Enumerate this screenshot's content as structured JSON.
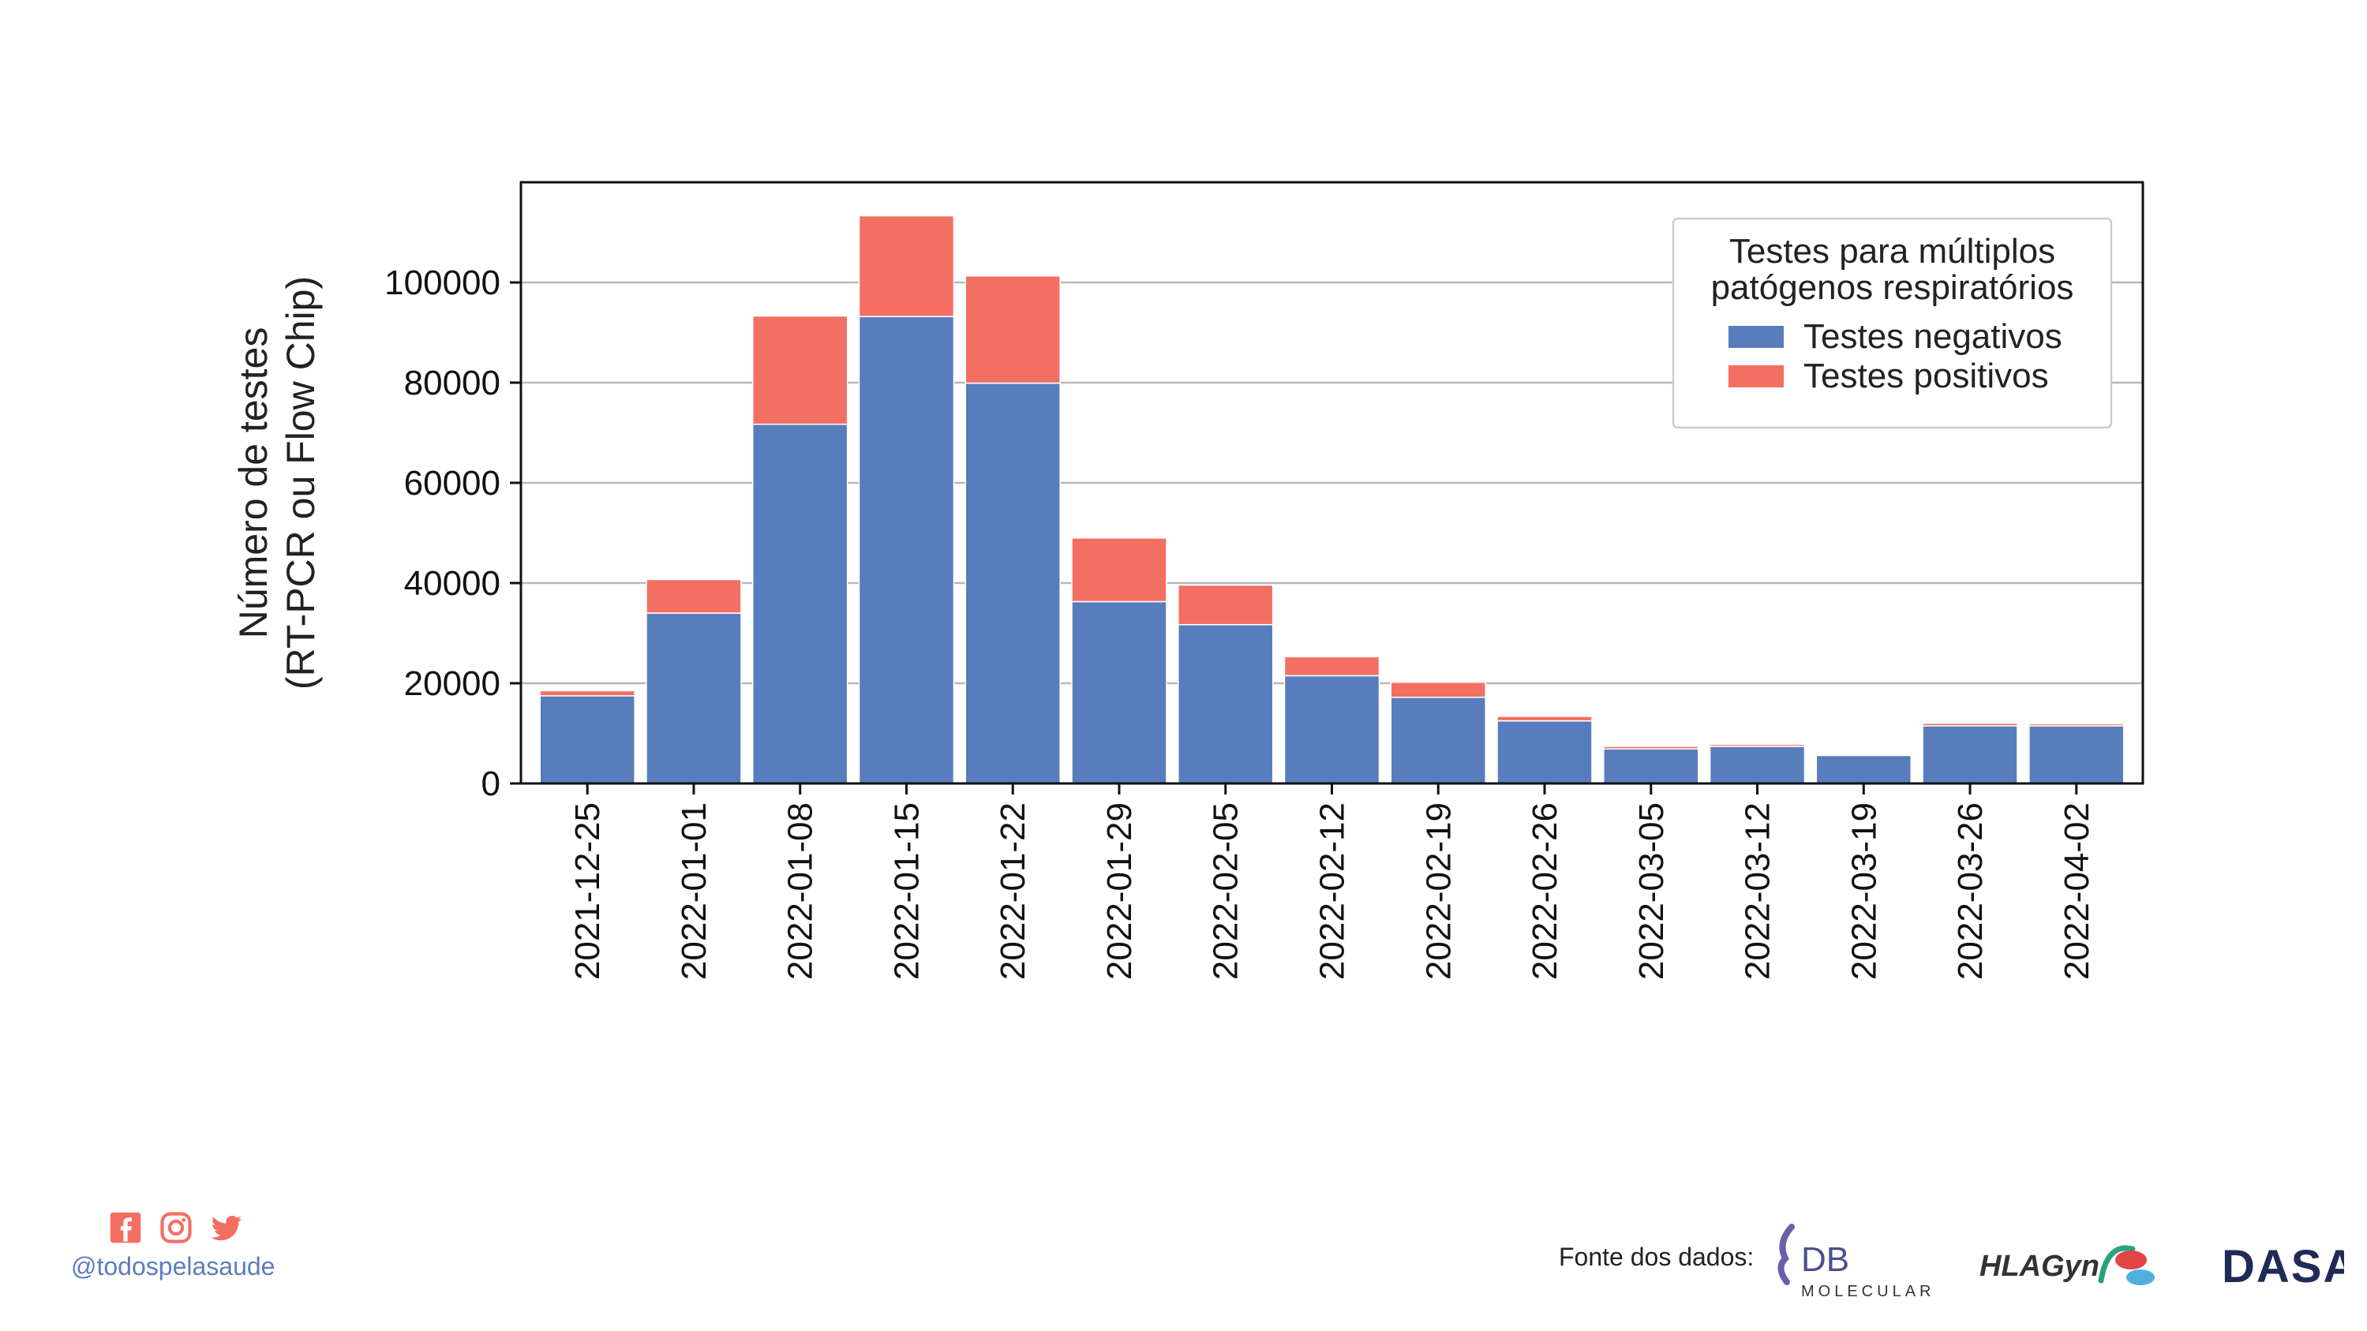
{
  "chart_data": {
    "type": "bar",
    "stacked": true,
    "title": "",
    "xlabel": "",
    "ylabel": [
      "Número de testes",
      "(RT-PCR ou Flow Chip)"
    ],
    "ylim": [
      0,
      120000
    ],
    "yticks": [
      0,
      20000,
      40000,
      60000,
      80000,
      100000
    ],
    "grid": "horizontal",
    "legend_placement": "top-right",
    "legend_title": [
      "Testes para múltiplos",
      "patógenos respiratórios"
    ],
    "categories": [
      "2021-12-25",
      "2022-01-01",
      "2022-01-08",
      "2022-01-15",
      "2022-01-22",
      "2022-01-29",
      "2022-02-05",
      "2022-02-12",
      "2022-02-19",
      "2022-02-26",
      "2022-03-05",
      "2022-03-12",
      "2022-03-19",
      "2022-03-26",
      "2022-04-02"
    ],
    "series": [
      {
        "name": "Testes negativos",
        "color": "#587dbd",
        "values": [
          17500,
          34000,
          71700,
          93200,
          79900,
          36300,
          31700,
          21500,
          17200,
          12500,
          6900,
          7400,
          5600,
          11500,
          11500
        ]
      },
      {
        "name": "Testes positivos",
        "color": "#f36f62",
        "values": [
          1000,
          6700,
          21600,
          20100,
          21400,
          12700,
          7900,
          3800,
          3000,
          900,
          500,
          400,
          100,
          500,
          400
        ]
      }
    ]
  },
  "footer": {
    "social_icons": [
      "facebook-icon",
      "instagram-icon",
      "twitter-icon"
    ],
    "social_color": "#f36f62",
    "handle": "@todospelasaude",
    "source_label": "Fonte dos dados:",
    "logos": {
      "db": "DB",
      "db_sub": "MOLECULAR",
      "hlagyn": "HLAGyn.",
      "dasa": "DASA"
    }
  }
}
